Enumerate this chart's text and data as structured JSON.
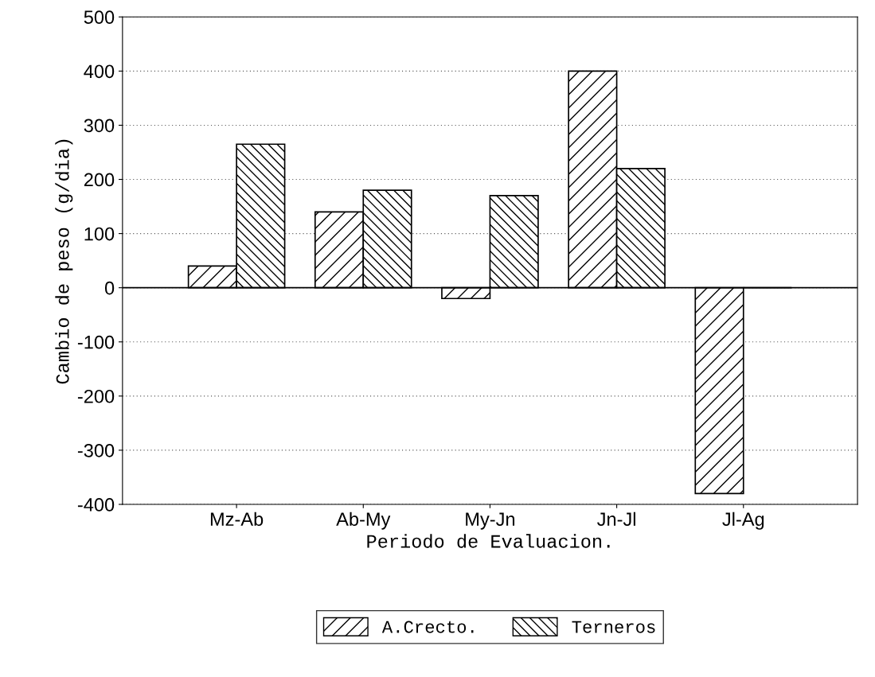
{
  "chart_data": {
    "type": "bar",
    "xlabel": "Periodo de Evaluacion.",
    "ylabel": "Cambio de peso (g/dia)",
    "categories": [
      "Mz-Ab",
      "Ab-My",
      "My-Jn",
      "Jn-Jl",
      "Jl-Ag"
    ],
    "series": [
      {
        "name": "A.Crecto.",
        "color": "#000000",
        "values": [
          40,
          140,
          -20,
          400,
          -380
        ]
      },
      {
        "name": "Terneros",
        "color": "#000000",
        "values": [
          265,
          180,
          170,
          220,
          0
        ]
      }
    ],
    "ylim": [
      -400,
      500
    ],
    "yticks": [
      -400,
      -300,
      -200,
      -100,
      0,
      100,
      200,
      300,
      400,
      500
    ],
    "grid": "y",
    "legend": "bottom"
  }
}
